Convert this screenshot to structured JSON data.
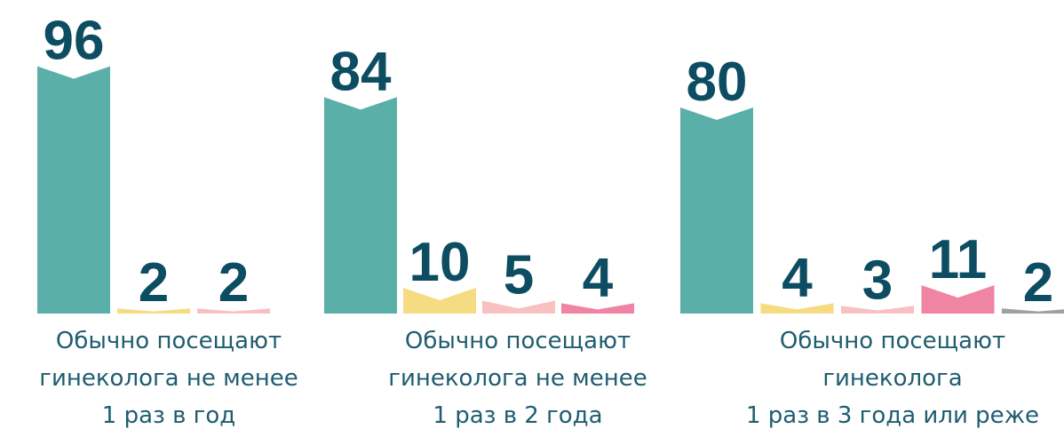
{
  "chart_data": [
    {
      "type": "bar",
      "label": [
        "Обычно посещают",
        "гинеколога не менее",
        "1 раз в год"
      ],
      "values": [
        96,
        2,
        2
      ],
      "colors": [
        "#5bafa9",
        "#f5dc82",
        "#f9c0c0"
      ]
    },
    {
      "type": "bar",
      "label": [
        "Обычно посещают",
        "гинеколога не менее",
        "1 раз в 2 года"
      ],
      "values": [
        84,
        10,
        5,
        4
      ],
      "colors": [
        "#5bafa9",
        "#f5dc82",
        "#f9c0c0",
        "#f084a4"
      ]
    },
    {
      "type": "bar",
      "label": [
        "Обычно посещают",
        "гинеколога",
        "1 раз в 3 года или реже"
      ],
      "values": [
        80,
        4,
        3,
        11,
        2
      ],
      "colors": [
        "#5bafa9",
        "#f5dc82",
        "#f9c0c0",
        "#f084a4",
        "#a0a0a0"
      ]
    }
  ]
}
